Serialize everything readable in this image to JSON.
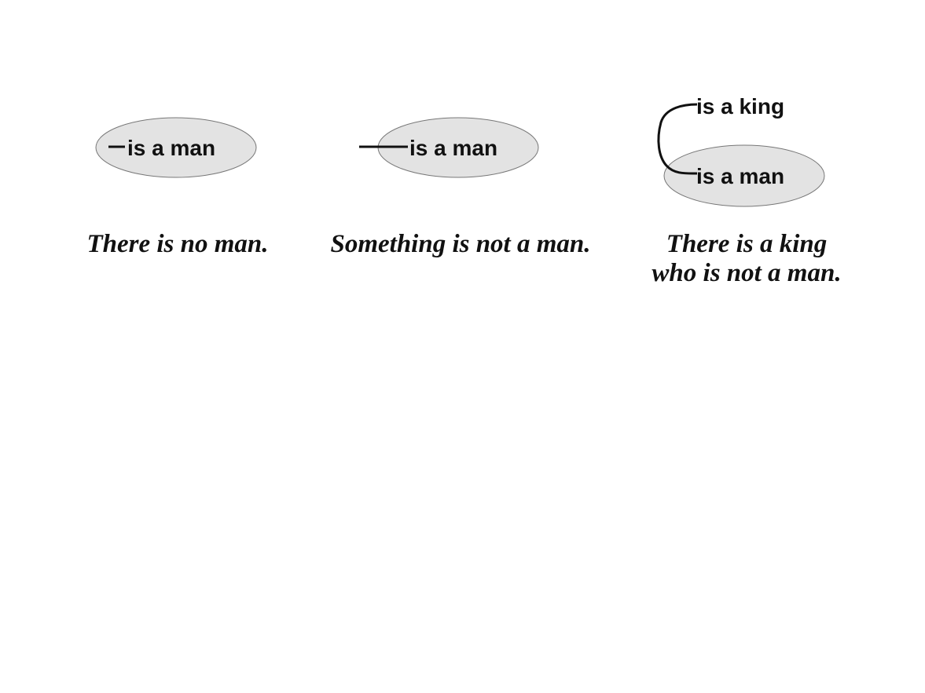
{
  "diagrams": [
    {
      "predicates": [
        "is a man"
      ],
      "caption_lines": [
        "There is no man."
      ]
    },
    {
      "predicates": [
        "is a man"
      ],
      "caption_lines": [
        "Something is not a man."
      ]
    },
    {
      "predicates": [
        "is a king",
        "is a man"
      ],
      "caption_lines": [
        "There is a king",
        "who is not a man."
      ]
    }
  ],
  "colors": {
    "cut_fill": "#e3e3e3",
    "cut_stroke": "#777777",
    "ink": "#111111"
  }
}
